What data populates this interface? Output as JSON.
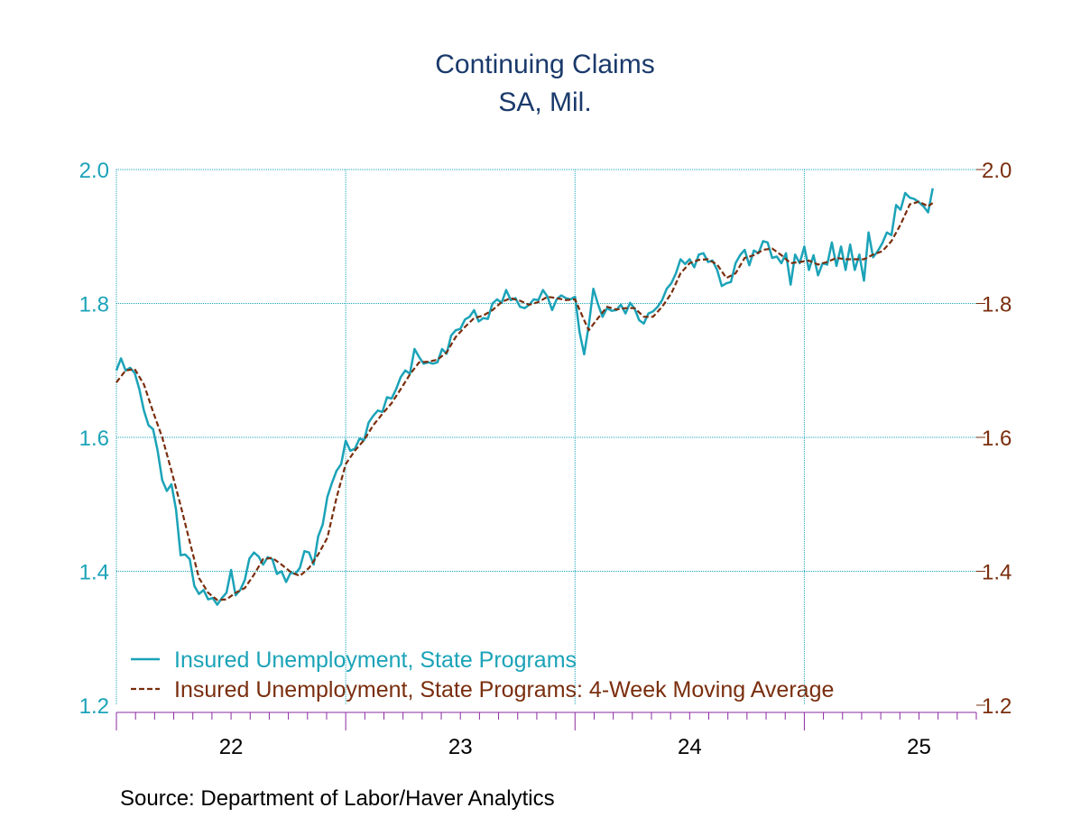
{
  "header": {
    "title": "Continuing Claims",
    "subtitle": "SA, Mil."
  },
  "footer": {
    "source": "Source:  Department of Labor/Haver Analytics"
  },
  "colors": {
    "series_main": "#1ba3b8",
    "series_avg": "#7a2e0e",
    "grid": "#1ba3b8",
    "left_axis_text": "#1ba3b8",
    "right_axis_text": "#7a2e0e",
    "tick": "#8a2ba0",
    "title": "#1a3a6b"
  },
  "chart_data": {
    "type": "line",
    "title": "Continuing Claims",
    "subtitle": "SA, Mil.",
    "ylim": [
      1.2,
      2.0
    ],
    "y_ticks": [
      "1.2",
      "1.4",
      "1.6",
      "1.8",
      "2.0"
    ],
    "x_tick_labels": [
      "22",
      "23",
      "24",
      "25"
    ],
    "grid": true,
    "legend": "bottom-left",
    "x_start_year": 2021.5,
    "x_end_year": 2025.25,
    "series": [
      {
        "name": "Insured Unemployment, State Programs",
        "style": "solid",
        "points": [
          [
            2021.5,
            1.7
          ],
          [
            2021.52,
            1.718
          ],
          [
            2021.54,
            1.7
          ],
          [
            2021.56,
            1.704
          ],
          [
            2021.58,
            1.696
          ],
          [
            2021.6,
            1.672
          ],
          [
            2021.62,
            1.64
          ],
          [
            2021.64,
            1.618
          ],
          [
            2021.66,
            1.612
          ],
          [
            2021.68,
            1.58
          ],
          [
            2021.7,
            1.536
          ],
          [
            2021.72,
            1.52
          ],
          [
            2021.74,
            1.53
          ],
          [
            2021.76,
            1.492
          ],
          [
            2021.78,
            1.424
          ],
          [
            2021.8,
            1.425
          ],
          [
            2021.82,
            1.418
          ],
          [
            2021.84,
            1.378
          ],
          [
            2021.86,
            1.366
          ],
          [
            2021.88,
            1.372
          ],
          [
            2021.9,
            1.358
          ],
          [
            2021.92,
            1.36
          ],
          [
            2021.94,
            1.35
          ],
          [
            2021.96,
            1.36
          ],
          [
            2021.98,
            1.368
          ],
          [
            2022.0,
            1.402
          ],
          [
            2022.02,
            1.364
          ],
          [
            2022.04,
            1.372
          ],
          [
            2022.06,
            1.387
          ],
          [
            2022.08,
            1.419
          ],
          [
            2022.1,
            1.428
          ],
          [
            2022.12,
            1.422
          ],
          [
            2022.14,
            1.41
          ],
          [
            2022.16,
            1.421
          ],
          [
            2022.18,
            1.418
          ],
          [
            2022.2,
            1.396
          ],
          [
            2022.22,
            1.4
          ],
          [
            2022.24,
            1.384
          ],
          [
            2022.26,
            1.398
          ],
          [
            2022.28,
            1.396
          ],
          [
            2022.3,
            1.405
          ],
          [
            2022.32,
            1.43
          ],
          [
            2022.34,
            1.428
          ],
          [
            2022.36,
            1.41
          ],
          [
            2022.38,
            1.452
          ],
          [
            2022.4,
            1.47
          ],
          [
            2022.42,
            1.511
          ],
          [
            2022.44,
            1.532
          ],
          [
            2022.46,
            1.55
          ],
          [
            2022.48,
            1.56
          ],
          [
            2022.5,
            1.595
          ],
          [
            2022.52,
            1.58
          ],
          [
            2022.54,
            1.583
          ],
          [
            2022.56,
            1.598
          ],
          [
            2022.58,
            1.596
          ],
          [
            2022.6,
            1.622
          ],
          [
            2022.62,
            1.632
          ],
          [
            2022.64,
            1.64
          ],
          [
            2022.66,
            1.638
          ],
          [
            2022.68,
            1.66
          ],
          [
            2022.7,
            1.658
          ],
          [
            2022.72,
            1.672
          ],
          [
            2022.74,
            1.69
          ],
          [
            2022.76,
            1.7
          ],
          [
            2022.78,
            1.695
          ],
          [
            2022.8,
            1.732
          ],
          [
            2022.82,
            1.72
          ],
          [
            2022.84,
            1.71
          ],
          [
            2022.86,
            1.712
          ],
          [
            2022.88,
            1.71
          ],
          [
            2022.9,
            1.712
          ],
          [
            2022.92,
            1.732
          ],
          [
            2022.94,
            1.725
          ],
          [
            2022.96,
            1.752
          ],
          [
            2022.98,
            1.76
          ],
          [
            2023.0,
            1.762
          ],
          [
            2023.02,
            1.776
          ],
          [
            2023.04,
            1.78
          ],
          [
            2023.06,
            1.79
          ],
          [
            2023.08,
            1.773
          ],
          [
            2023.1,
            1.778
          ],
          [
            2023.12,
            1.777
          ],
          [
            2023.14,
            1.8
          ],
          [
            2023.16,
            1.806
          ],
          [
            2023.18,
            1.801
          ],
          [
            2023.2,
            1.82
          ],
          [
            2023.22,
            1.805
          ],
          [
            2023.24,
            1.808
          ],
          [
            2023.26,
            1.795
          ],
          [
            2023.28,
            1.793
          ],
          [
            2023.3,
            1.798
          ],
          [
            2023.32,
            1.806
          ],
          [
            2023.34,
            1.805
          ],
          [
            2023.36,
            1.82
          ],
          [
            2023.38,
            1.81
          ],
          [
            2023.4,
            1.79
          ],
          [
            2023.42,
            1.806
          ],
          [
            2023.44,
            1.812
          ],
          [
            2023.46,
            1.808
          ],
          [
            2023.48,
            1.806
          ],
          [
            2023.5,
            1.81
          ],
          [
            2023.52,
            1.757
          ],
          [
            2023.54,
            1.724
          ],
          [
            2023.56,
            1.767
          ],
          [
            2023.58,
            1.822
          ],
          [
            2023.6,
            1.799
          ],
          [
            2023.62,
            1.78
          ],
          [
            2023.64,
            1.793
          ],
          [
            2023.66,
            1.789
          ],
          [
            2023.68,
            1.79
          ],
          [
            2023.7,
            1.798
          ],
          [
            2023.72,
            1.785
          ],
          [
            2023.74,
            1.801
          ],
          [
            2023.76,
            1.792
          ],
          [
            2023.78,
            1.775
          ],
          [
            2023.8,
            1.77
          ],
          [
            2023.82,
            1.785
          ],
          [
            2023.84,
            1.788
          ],
          [
            2023.86,
            1.795
          ],
          [
            2023.88,
            1.805
          ],
          [
            2023.9,
            1.822
          ],
          [
            2023.92,
            1.83
          ],
          [
            2023.94,
            1.845
          ],
          [
            2023.96,
            1.866
          ],
          [
            2023.98,
            1.859
          ],
          [
            2024.0,
            1.866
          ],
          [
            2024.02,
            1.854
          ],
          [
            2024.04,
            1.873
          ],
          [
            2024.06,
            1.875
          ],
          [
            2024.08,
            1.862
          ],
          [
            2024.1,
            1.864
          ],
          [
            2024.12,
            1.85
          ],
          [
            2024.14,
            1.826
          ],
          [
            2024.16,
            1.83
          ],
          [
            2024.18,
            1.832
          ],
          [
            2024.2,
            1.86
          ],
          [
            2024.22,
            1.872
          ],
          [
            2024.24,
            1.88
          ],
          [
            2024.26,
            1.857
          ],
          [
            2024.28,
            1.879
          ],
          [
            2024.3,
            1.875
          ],
          [
            2024.32,
            1.893
          ],
          [
            2024.34,
            1.891
          ],
          [
            2024.36,
            1.868
          ],
          [
            2024.38,
            1.87
          ],
          [
            2024.4,
            1.86
          ],
          [
            2024.42,
            1.875
          ],
          [
            2024.44,
            1.828
          ],
          [
            2024.46,
            1.873
          ],
          [
            2024.48,
            1.86
          ],
          [
            2024.5,
            1.885
          ],
          [
            2024.52,
            1.85
          ],
          [
            2024.54,
            1.872
          ],
          [
            2024.56,
            1.842
          ],
          [
            2024.58,
            1.86
          ],
          [
            2024.6,
            1.858
          ],
          [
            2024.62,
            1.891
          ],
          [
            2024.64,
            1.856
          ],
          [
            2024.66,
            1.885
          ],
          [
            2024.68,
            1.85
          ],
          [
            2024.7,
            1.888
          ],
          [
            2024.72,
            1.85
          ],
          [
            2024.74,
            1.873
          ],
          [
            2024.76,
            1.834
          ],
          [
            2024.78,
            1.906
          ],
          [
            2024.8,
            1.869
          ],
          [
            2024.82,
            1.878
          ],
          [
            2024.84,
            1.89
          ],
          [
            2024.86,
            1.906
          ],
          [
            2024.88,
            1.902
          ],
          [
            2024.9,
            1.947
          ],
          [
            2024.92,
            1.94
          ],
          [
            2024.94,
            1.965
          ],
          [
            2024.96,
            1.958
          ],
          [
            2024.98,
            1.956
          ],
          [
            2025.0,
            1.951
          ],
          [
            2025.02,
            1.945
          ],
          [
            2025.04,
            1.936
          ],
          [
            2025.06,
            1.972
          ]
        ]
      },
      {
        "name": "Insured Unemployment, State Programs: 4-Week Moving Average",
        "style": "dashed",
        "points": [
          [
            2021.5,
            1.682
          ],
          [
            2021.54,
            1.7
          ],
          [
            2021.58,
            1.702
          ],
          [
            2021.62,
            1.679
          ],
          [
            2021.66,
            1.638
          ],
          [
            2021.7,
            1.6
          ],
          [
            2021.74,
            1.55
          ],
          [
            2021.78,
            1.498
          ],
          [
            2021.82,
            1.444
          ],
          [
            2021.86,
            1.39
          ],
          [
            2021.9,
            1.368
          ],
          [
            2021.94,
            1.357
          ],
          [
            2021.98,
            1.358
          ],
          [
            2022.02,
            1.368
          ],
          [
            2022.06,
            1.375
          ],
          [
            2022.1,
            1.395
          ],
          [
            2022.14,
            1.418
          ],
          [
            2022.18,
            1.42
          ],
          [
            2022.22,
            1.41
          ],
          [
            2022.26,
            1.399
          ],
          [
            2022.3,
            1.393
          ],
          [
            2022.34,
            1.405
          ],
          [
            2022.38,
            1.425
          ],
          [
            2022.42,
            1.45
          ],
          [
            2022.46,
            1.51
          ],
          [
            2022.5,
            1.56
          ],
          [
            2022.54,
            1.58
          ],
          [
            2022.58,
            1.596
          ],
          [
            2022.62,
            1.618
          ],
          [
            2022.66,
            1.635
          ],
          [
            2022.7,
            1.651
          ],
          [
            2022.74,
            1.672
          ],
          [
            2022.78,
            1.694
          ],
          [
            2022.82,
            1.712
          ],
          [
            2022.86,
            1.713
          ],
          [
            2022.9,
            1.716
          ],
          [
            2022.94,
            1.727
          ],
          [
            2022.98,
            1.75
          ],
          [
            2023.02,
            1.765
          ],
          [
            2023.06,
            1.778
          ],
          [
            2023.1,
            1.782
          ],
          [
            2023.14,
            1.79
          ],
          [
            2023.18,
            1.802
          ],
          [
            2023.22,
            1.808
          ],
          [
            2023.26,
            1.804
          ],
          [
            2023.3,
            1.798
          ],
          [
            2023.34,
            1.802
          ],
          [
            2023.38,
            1.81
          ],
          [
            2023.42,
            1.808
          ],
          [
            2023.46,
            1.805
          ],
          [
            2023.5,
            1.806
          ],
          [
            2023.54,
            1.775
          ],
          [
            2023.56,
            1.76
          ],
          [
            2023.6,
            1.778
          ],
          [
            2023.64,
            1.795
          ],
          [
            2023.68,
            1.791
          ],
          [
            2023.72,
            1.793
          ],
          [
            2023.76,
            1.793
          ],
          [
            2023.8,
            1.78
          ],
          [
            2023.84,
            1.78
          ],
          [
            2023.88,
            1.795
          ],
          [
            2023.92,
            1.815
          ],
          [
            2023.96,
            1.845
          ],
          [
            2024.0,
            1.86
          ],
          [
            2024.04,
            1.865
          ],
          [
            2024.08,
            1.866
          ],
          [
            2024.12,
            1.858
          ],
          [
            2024.16,
            1.838
          ],
          [
            2024.2,
            1.845
          ],
          [
            2024.24,
            1.868
          ],
          [
            2024.28,
            1.872
          ],
          [
            2024.32,
            1.88
          ],
          [
            2024.36,
            1.882
          ],
          [
            2024.4,
            1.872
          ],
          [
            2024.44,
            1.86
          ],
          [
            2024.48,
            1.862
          ],
          [
            2024.52,
            1.864
          ],
          [
            2024.56,
            1.858
          ],
          [
            2024.6,
            1.862
          ],
          [
            2024.64,
            1.868
          ],
          [
            2024.68,
            1.866
          ],
          [
            2024.72,
            1.866
          ],
          [
            2024.76,
            1.866
          ],
          [
            2024.8,
            1.873
          ],
          [
            2024.84,
            1.878
          ],
          [
            2024.88,
            1.893
          ],
          [
            2024.92,
            1.918
          ],
          [
            2024.96,
            1.948
          ],
          [
            2025.0,
            1.952
          ],
          [
            2025.04,
            1.945
          ],
          [
            2025.06,
            1.95
          ]
        ]
      }
    ]
  }
}
